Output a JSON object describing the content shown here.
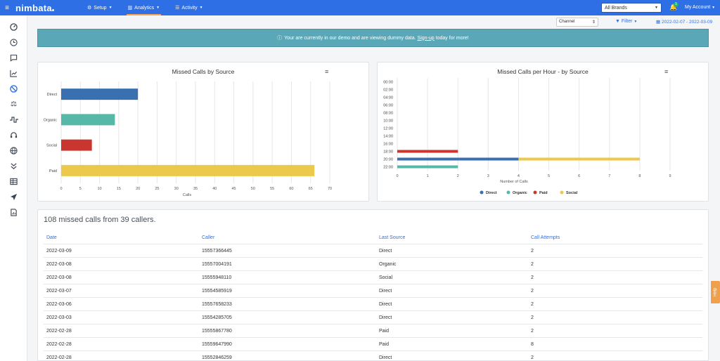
{
  "nav": {
    "menu_icon": "hamburger-icon",
    "logo": "nimbata",
    "items": [
      {
        "label": "Setup",
        "icon": "gear-icon"
      },
      {
        "label": "Analytics",
        "icon": "chart-icon"
      },
      {
        "label": "Activity",
        "icon": "list-icon"
      }
    ],
    "brand_select": "All Brands",
    "notification_count": "1",
    "account": "My Account"
  },
  "sidebar": {
    "icons": [
      "dashboard-icon",
      "clock-icon",
      "chat-icon",
      "line-chart-icon",
      "missed-calls-icon",
      "balance-icon",
      "waveform-icon",
      "headset-icon",
      "globe-icon",
      "double-chevron-icon",
      "table-icon",
      "send-icon",
      "report-icon"
    ]
  },
  "toolbar": {
    "channel": "Channel",
    "filter": "Filter",
    "date_range": "2022-02-07 - 2022-03-09"
  },
  "banner": {
    "text_before": "Your are currently in our demo and are viewing dummy data.",
    "link": "Sign-up",
    "text_after": "today for more!"
  },
  "chart_data": [
    {
      "type": "bar",
      "orientation": "horizontal",
      "title": "Missed Calls by Source",
      "categories": [
        "Direct",
        "Organic",
        "Social",
        "Paid"
      ],
      "values": [
        20,
        14,
        8,
        66
      ],
      "colors": [
        "#3a6fb0",
        "#56b8a6",
        "#c8362f",
        "#ecc94b"
      ],
      "xlabel": "Calls",
      "xlim": [
        0,
        70
      ],
      "xticks": [
        "0",
        "5",
        "10",
        "15",
        "20",
        "25",
        "30",
        "35",
        "40",
        "45",
        "50",
        "55",
        "60",
        "65",
        "70"
      ],
      "grid": true
    },
    {
      "type": "bar",
      "orientation": "horizontal",
      "stacked": true,
      "title": "Missed Calls per Hour - by Source",
      "categories": [
        "00:00",
        "02:00",
        "04:00",
        "06:00",
        "08:00",
        "10:00",
        "12:00",
        "14:00",
        "16:00",
        "18:00",
        "20:00",
        "22:00"
      ],
      "series": [
        {
          "name": "Direct",
          "color": "#3a6fb0",
          "values": [
            0,
            0,
            0,
            0,
            0,
            0,
            0,
            0,
            0,
            0,
            4,
            0
          ]
        },
        {
          "name": "Organic",
          "color": "#56b8a6",
          "values": [
            0,
            0,
            0,
            0,
            0,
            0,
            0,
            0,
            0,
            0,
            0,
            2
          ]
        },
        {
          "name": "Paid",
          "color": "#c8362f",
          "values": [
            0,
            0,
            0,
            0,
            0,
            0,
            0,
            0,
            0,
            2,
            0,
            0
          ]
        },
        {
          "name": "Social",
          "color": "#ecc94b",
          "values": [
            0,
            0,
            0,
            0,
            0,
            0,
            0,
            0,
            0,
            0,
            4,
            0
          ]
        }
      ],
      "xlabel": "Number of Calls",
      "xlim": [
        0,
        9
      ],
      "xticks": [
        "0",
        "1",
        "2",
        "3",
        "4",
        "5",
        "6",
        "7",
        "8",
        "9"
      ],
      "legend": "bottom",
      "grid": true
    }
  ],
  "table": {
    "summary": "108 missed calls from 39 callers.",
    "columns": [
      "Date",
      "Caller",
      "Last Source",
      "Call Attempts"
    ],
    "rows": [
      [
        "2022-03-09",
        "15557366445",
        "Direct",
        "2"
      ],
      [
        "2022-03-08",
        "15557004191",
        "Organic",
        "2"
      ],
      [
        "2022-03-08",
        "15555948110",
        "Social",
        "2"
      ],
      [
        "2022-03-07",
        "15554585919",
        "Direct",
        "2"
      ],
      [
        "2022-03-06",
        "15557658233",
        "Direct",
        "2"
      ],
      [
        "2022-03-03",
        "15554285705",
        "Direct",
        "2"
      ],
      [
        "2022-02-28",
        "15555867780",
        "Paid",
        "2"
      ],
      [
        "2022-02-28",
        "15559647990",
        "Paid",
        "8"
      ],
      [
        "2022-02-28",
        "15552846259",
        "Direct",
        "2"
      ]
    ]
  },
  "help": "Help"
}
